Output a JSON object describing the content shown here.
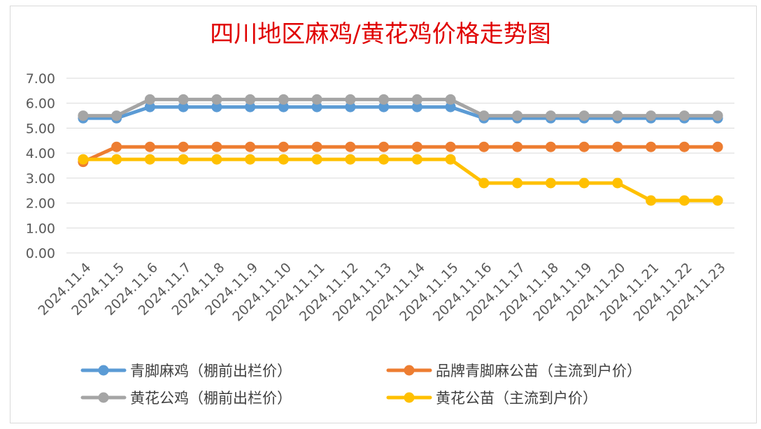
{
  "chart_data": {
    "type": "line",
    "title": "四川地区麻鸡/黄花鸡价格走势图",
    "title_color": "#e00000",
    "categories": [
      "2024.11.4",
      "2024.11.5",
      "2024.11.6",
      "2024.11.7",
      "2024.11.8",
      "2024.11.9",
      "2024.11.10",
      "2024.11.11",
      "2024.11.12",
      "2024.11.13",
      "2024.11.14",
      "2024.11.15",
      "2024.11.16",
      "2024.11.17",
      "2024.11.18",
      "2024.11.19",
      "2024.11.20",
      "2024.11.21",
      "2024.11.22",
      "2024.11.23"
    ],
    "ylim": [
      0,
      7
    ],
    "yticks": [
      "0.00",
      "1.00",
      "2.00",
      "3.00",
      "4.00",
      "5.00",
      "6.00",
      "7.00"
    ],
    "grid": true,
    "legend_position": "bottom",
    "series": [
      {
        "name": "青脚麻鸡（棚前出栏价）",
        "color": "#5b9bd5",
        "values": [
          5.4,
          5.4,
          5.85,
          5.85,
          5.85,
          5.85,
          5.85,
          5.85,
          5.85,
          5.85,
          5.85,
          5.85,
          5.4,
          5.4,
          5.4,
          5.4,
          5.4,
          5.4,
          5.4,
          5.4
        ]
      },
      {
        "name": "品牌青脚麻公苗（主流到户价）",
        "color": "#ed7d31",
        "values": [
          3.65,
          4.25,
          4.25,
          4.25,
          4.25,
          4.25,
          4.25,
          4.25,
          4.25,
          4.25,
          4.25,
          4.25,
          4.25,
          4.25,
          4.25,
          4.25,
          4.25,
          4.25,
          4.25,
          4.25
        ]
      },
      {
        "name": "黄花公鸡（棚前出栏价）",
        "color": "#a5a5a5",
        "values": [
          5.5,
          5.5,
          6.15,
          6.15,
          6.15,
          6.15,
          6.15,
          6.15,
          6.15,
          6.15,
          6.15,
          6.15,
          5.5,
          5.5,
          5.5,
          5.5,
          5.5,
          5.5,
          5.5,
          5.5
        ]
      },
      {
        "name": "黄花公苗（主流到户价）",
        "color": "#ffc000",
        "values": [
          3.75,
          3.75,
          3.75,
          3.75,
          3.75,
          3.75,
          3.75,
          3.75,
          3.75,
          3.75,
          3.75,
          3.75,
          2.8,
          2.8,
          2.8,
          2.8,
          2.8,
          2.1,
          2.1,
          2.1
        ]
      }
    ]
  }
}
